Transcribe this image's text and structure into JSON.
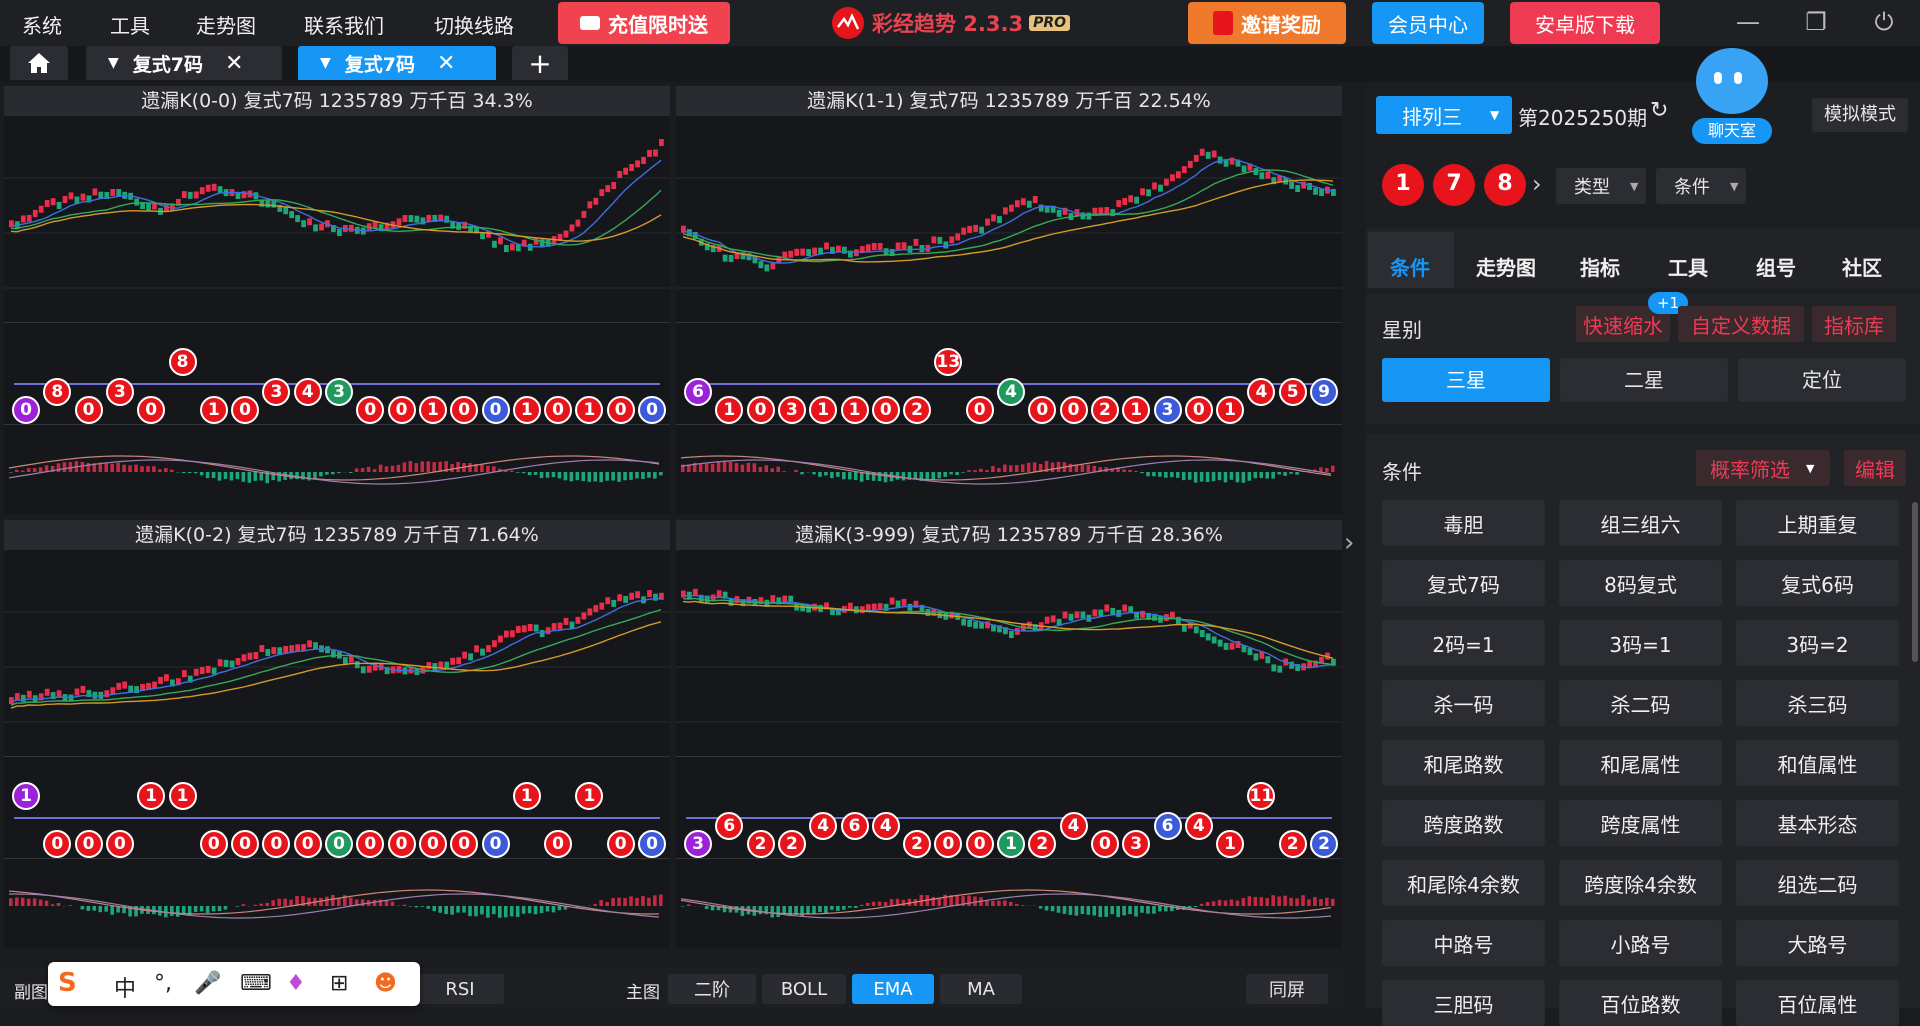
{
  "menu": [
    "系统",
    "工具",
    "走势图",
    "联系我们",
    "切换线路"
  ],
  "promo_label": "充值限时送",
  "app_title": "彩经趋势 2.3.3",
  "app_badge": "PRO",
  "invite_label": "邀请奖励",
  "member_label": "会员中心",
  "android_label": "安卓版下载",
  "tabs": [
    {
      "label": "复式7码",
      "active": false
    },
    {
      "label": "复式7码",
      "active": true
    }
  ],
  "panels": [
    {
      "title": "遗漏K(0-0)  复式7码  1235789  万千百  34.3%",
      "balls": [
        {
          "v": "0",
          "c": "purple",
          "r": 0
        },
        {
          "v": "8",
          "c": "red",
          "r": 1
        },
        {
          "v": "0",
          "c": "red",
          "r": 0
        },
        {
          "v": "3",
          "c": "red",
          "r": 1
        },
        {
          "v": "0",
          "c": "red",
          "r": 0
        },
        {
          "v": "8",
          "c": "red",
          "r": 2
        },
        {
          "v": "1",
          "c": "red",
          "r": 0
        },
        {
          "v": "0",
          "c": "red",
          "r": 0
        },
        {
          "v": "3",
          "c": "red",
          "r": 1
        },
        {
          "v": "4",
          "c": "red",
          "r": 1
        },
        {
          "v": "3",
          "c": "green",
          "r": 1
        },
        {
          "v": "0",
          "c": "red",
          "r": 0
        },
        {
          "v": "0",
          "c": "red",
          "r": 0
        },
        {
          "v": "1",
          "c": "red",
          "r": 0
        },
        {
          "v": "0",
          "c": "red",
          "r": 0
        },
        {
          "v": "0",
          "c": "blue",
          "r": 0
        },
        {
          "v": "1",
          "c": "red",
          "r": 0
        },
        {
          "v": "0",
          "c": "red",
          "r": 0
        },
        {
          "v": "1",
          "c": "red",
          "r": 0
        },
        {
          "v": "0",
          "c": "red",
          "r": 0
        },
        {
          "v": "0",
          "c": "blue",
          "r": 0
        }
      ]
    },
    {
      "title": "遗漏K(1-1)  复式7码  1235789  万千百  22.54%",
      "balls": [
        {
          "v": "6",
          "c": "purple",
          "r": 1
        },
        {
          "v": "1",
          "c": "red",
          "r": 0
        },
        {
          "v": "0",
          "c": "red",
          "r": 0
        },
        {
          "v": "3",
          "c": "red",
          "r": 0
        },
        {
          "v": "1",
          "c": "red",
          "r": 0
        },
        {
          "v": "1",
          "c": "red",
          "r": 0
        },
        {
          "v": "0",
          "c": "red",
          "r": 0
        },
        {
          "v": "2",
          "c": "red",
          "r": 0
        },
        {
          "v": "13",
          "c": "red",
          "r": 2
        },
        {
          "v": "0",
          "c": "red",
          "r": 0
        },
        {
          "v": "4",
          "c": "green",
          "r": 1
        },
        {
          "v": "0",
          "c": "red",
          "r": 0
        },
        {
          "v": "0",
          "c": "red",
          "r": 0
        },
        {
          "v": "2",
          "c": "red",
          "r": 0
        },
        {
          "v": "1",
          "c": "red",
          "r": 0
        },
        {
          "v": "3",
          "c": "blue",
          "r": 0
        },
        {
          "v": "0",
          "c": "red",
          "r": 0
        },
        {
          "v": "1",
          "c": "red",
          "r": 0
        },
        {
          "v": "4",
          "c": "red",
          "r": 1
        },
        {
          "v": "5",
          "c": "red",
          "r": 1
        },
        {
          "v": "9",
          "c": "blue",
          "r": 1
        }
      ]
    },
    {
      "title": "遗漏K(0-2)  复式7码  1235789  万千百  71.64%",
      "balls": [
        {
          "v": "1",
          "c": "purple",
          "r": 2
        },
        {
          "v": "0",
          "c": "red",
          "r": 0
        },
        {
          "v": "0",
          "c": "red",
          "r": 0
        },
        {
          "v": "0",
          "c": "red",
          "r": 0
        },
        {
          "v": "1",
          "c": "red",
          "r": 2
        },
        {
          "v": "1",
          "c": "red",
          "r": 2
        },
        {
          "v": "0",
          "c": "red",
          "r": 0
        },
        {
          "v": "0",
          "c": "red",
          "r": 0
        },
        {
          "v": "0",
          "c": "red",
          "r": 0
        },
        {
          "v": "0",
          "c": "red",
          "r": 0
        },
        {
          "v": "0",
          "c": "green",
          "r": 0
        },
        {
          "v": "0",
          "c": "red",
          "r": 0
        },
        {
          "v": "0",
          "c": "red",
          "r": 0
        },
        {
          "v": "0",
          "c": "red",
          "r": 0
        },
        {
          "v": "0",
          "c": "red",
          "r": 0
        },
        {
          "v": "0",
          "c": "blue",
          "r": 0
        },
        {
          "v": "1",
          "c": "red",
          "r": 2
        },
        {
          "v": "0",
          "c": "red",
          "r": 0
        },
        {
          "v": "1",
          "c": "red",
          "r": 2
        },
        {
          "v": "0",
          "c": "red",
          "r": 0
        },
        {
          "v": "0",
          "c": "blue",
          "r": 0
        }
      ]
    },
    {
      "title": "遗漏K(3-999)  复式7码  1235789  万千百  28.36%",
      "balls": [
        {
          "v": "3",
          "c": "purple",
          "r": 0
        },
        {
          "v": "6",
          "c": "red",
          "r": 1
        },
        {
          "v": "2",
          "c": "red",
          "r": 0
        },
        {
          "v": "2",
          "c": "red",
          "r": 0
        },
        {
          "v": "4",
          "c": "red",
          "r": 1
        },
        {
          "v": "6",
          "c": "red",
          "r": 1
        },
        {
          "v": "4",
          "c": "red",
          "r": 1
        },
        {
          "v": "2",
          "c": "red",
          "r": 0
        },
        {
          "v": "0",
          "c": "red",
          "r": 0
        },
        {
          "v": "0",
          "c": "red",
          "r": 0
        },
        {
          "v": "1",
          "c": "green",
          "r": 0
        },
        {
          "v": "2",
          "c": "red",
          "r": 0
        },
        {
          "v": "4",
          "c": "red",
          "r": 1
        },
        {
          "v": "0",
          "c": "red",
          "r": 0
        },
        {
          "v": "3",
          "c": "red",
          "r": 0
        },
        {
          "v": "6",
          "c": "blue",
          "r": 1
        },
        {
          "v": "4",
          "c": "red",
          "r": 1
        },
        {
          "v": "1",
          "c": "red",
          "r": 0
        },
        {
          "v": "11",
          "c": "red",
          "r": 2
        },
        {
          "v": "2",
          "c": "red",
          "r": 0
        },
        {
          "v": "2",
          "c": "blue",
          "r": 0
        }
      ]
    }
  ],
  "bottom": {
    "sub_label": "副图",
    "rsi": "RSI",
    "main_label": "主图",
    "erjie": "二阶",
    "boll": "BOLL",
    "ema": "EMA",
    "ma": "MA",
    "tongping": "同屏"
  },
  "right": {
    "lottery": "排列三",
    "period": "第2025250期",
    "chat": "聊天室",
    "sim_mode": "模拟模式",
    "numbers": [
      "1",
      "7",
      "8"
    ],
    "type_label": "类型",
    "cond_label": "条件",
    "tabs": [
      "条件",
      "走势图",
      "指标",
      "工具",
      "组号",
      "社区"
    ],
    "xingbie": "星别",
    "kuaisu": "快速缩水",
    "plus_badge": "+1",
    "custom_data": "自定义数据",
    "indicator_lib": "指标库",
    "star_options": [
      "三星",
      "二星",
      "定位"
    ],
    "conditions_label": "条件",
    "filter": "概率筛选",
    "edit": "编辑",
    "condition_buttons": [
      "毒胆",
      "组三组六",
      "上期重复",
      "复式7码",
      "8码复式",
      "复式6码",
      "2码=1",
      "3码=1",
      "3码=2",
      "杀一码",
      "杀二码",
      "杀三码",
      "和尾路数",
      "和尾属性",
      "和值属性",
      "跨度路数",
      "跨度属性",
      "基本形态",
      "和尾除4余数",
      "跨度除4余数",
      "组选二码",
      "中路号",
      "小路号",
      "大路号",
      "三胆码",
      "百位路数",
      "百位属性"
    ]
  },
  "ime": [
    "中",
    "°,"
  ],
  "colors": {
    "red": "#e8141c",
    "blue": "#3d5bd8",
    "green": "#1f9a5e",
    "purple": "#9b22d8",
    "accent": "#1697f6"
  }
}
